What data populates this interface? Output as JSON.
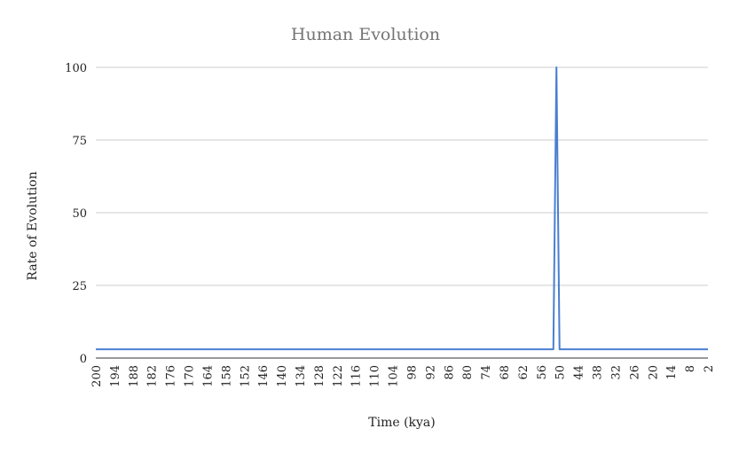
{
  "chart_data": {
    "type": "line",
    "title": "Human Evolution",
    "xlabel": "Time (kya)",
    "ylabel": "Rate of Evolution",
    "x_tick_labels": [
      "200",
      "194",
      "188",
      "182",
      "176",
      "170",
      "164",
      "158",
      "152",
      "146",
      "140",
      "134",
      "128",
      "122",
      "116",
      "110",
      "104",
      "98",
      "92",
      "86",
      "80",
      "74",
      "68",
      "62",
      "56",
      "50",
      "44",
      "38",
      "32",
      "26",
      "20",
      "14",
      "8",
      "2"
    ],
    "ylim": [
      0,
      100
    ],
    "y_ticks": [
      0,
      25,
      50,
      75,
      100
    ],
    "grid": true,
    "legend": "none",
    "series": [
      {
        "color": "#4a7fd0",
        "points": [
          {
            "x": 200,
            "y": 3
          },
          {
            "x": 52,
            "y": 3
          },
          {
            "x": 51,
            "y": 100
          },
          {
            "x": 50,
            "y": 3
          },
          {
            "x": 2,
            "y": 3
          }
        ]
      }
    ]
  }
}
